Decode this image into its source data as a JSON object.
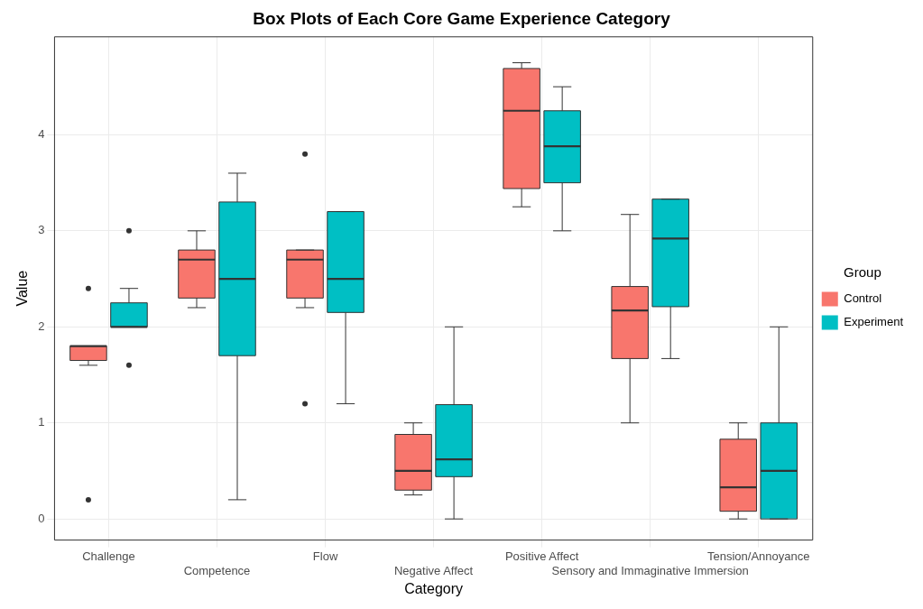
{
  "chart_data": {
    "type": "box",
    "title": "Box Plots of Each Core Game Experience Category",
    "xlabel": "Category",
    "ylabel": "Value",
    "legend_title": "Group",
    "categories": [
      "Challenge",
      "Competence",
      "Flow",
      "Negative Affect",
      "Positive Affect",
      "Sensory and Immaginative Immersion",
      "Tension/Annoyance"
    ],
    "ylim": [
      -0.22,
      5.02
    ],
    "yticks": [
      0,
      1,
      2,
      3,
      4
    ],
    "grid": true,
    "legend": "right",
    "series": [
      {
        "name": "Control",
        "color": "#f8766d",
        "boxes": [
          {
            "low": 1.6,
            "q1": 1.65,
            "median": 1.8,
            "q3": 1.8,
            "high": 1.8,
            "outliers": [
              2.4,
              0.2
            ]
          },
          {
            "low": 2.2,
            "q1": 2.3,
            "median": 2.7,
            "q3": 2.8,
            "high": 3.0
          },
          {
            "low": 2.2,
            "q1": 2.3,
            "median": 2.7,
            "q3": 2.8,
            "high": 2.8,
            "outliers": [
              3.8,
              1.2
            ]
          },
          {
            "low": 0.25,
            "q1": 0.3,
            "median": 0.5,
            "q3": 0.88,
            "high": 1.0
          },
          {
            "low": 3.25,
            "q1": 3.44,
            "median": 4.25,
            "q3": 4.69,
            "high": 4.75
          },
          {
            "low": 1.0,
            "q1": 1.67,
            "median": 2.17,
            "q3": 2.42,
            "high": 3.17
          },
          {
            "low": 0,
            "q1": 0.08,
            "median": 0.33,
            "q3": 0.83,
            "high": 1.0
          }
        ]
      },
      {
        "name": "Experiment",
        "color": "#00bfc4",
        "boxes": [
          {
            "low": 2.0,
            "q1": 2.0,
            "median": 2.0,
            "q3": 2.25,
            "high": 2.4,
            "outliers": [
              3.0,
              1.6
            ]
          },
          {
            "low": 0.2,
            "q1": 1.7,
            "median": 2.5,
            "q3": 3.3,
            "high": 3.6
          },
          {
            "low": 1.2,
            "q1": 2.15,
            "median": 2.5,
            "q3": 3.2,
            "high": 3.2
          },
          {
            "low": 0,
            "q1": 0.44,
            "median": 0.62,
            "q3": 1.19,
            "high": 2.0
          },
          {
            "low": 3.0,
            "q1": 3.5,
            "median": 3.88,
            "q3": 4.25,
            "high": 4.5
          },
          {
            "low": 1.67,
            "q1": 2.21,
            "median": 2.92,
            "q3": 3.33,
            "high": 3.33
          },
          {
            "low": 0,
            "q1": 0,
            "median": 0.5,
            "q3": 1.0,
            "high": 2.0
          }
        ]
      }
    ]
  }
}
